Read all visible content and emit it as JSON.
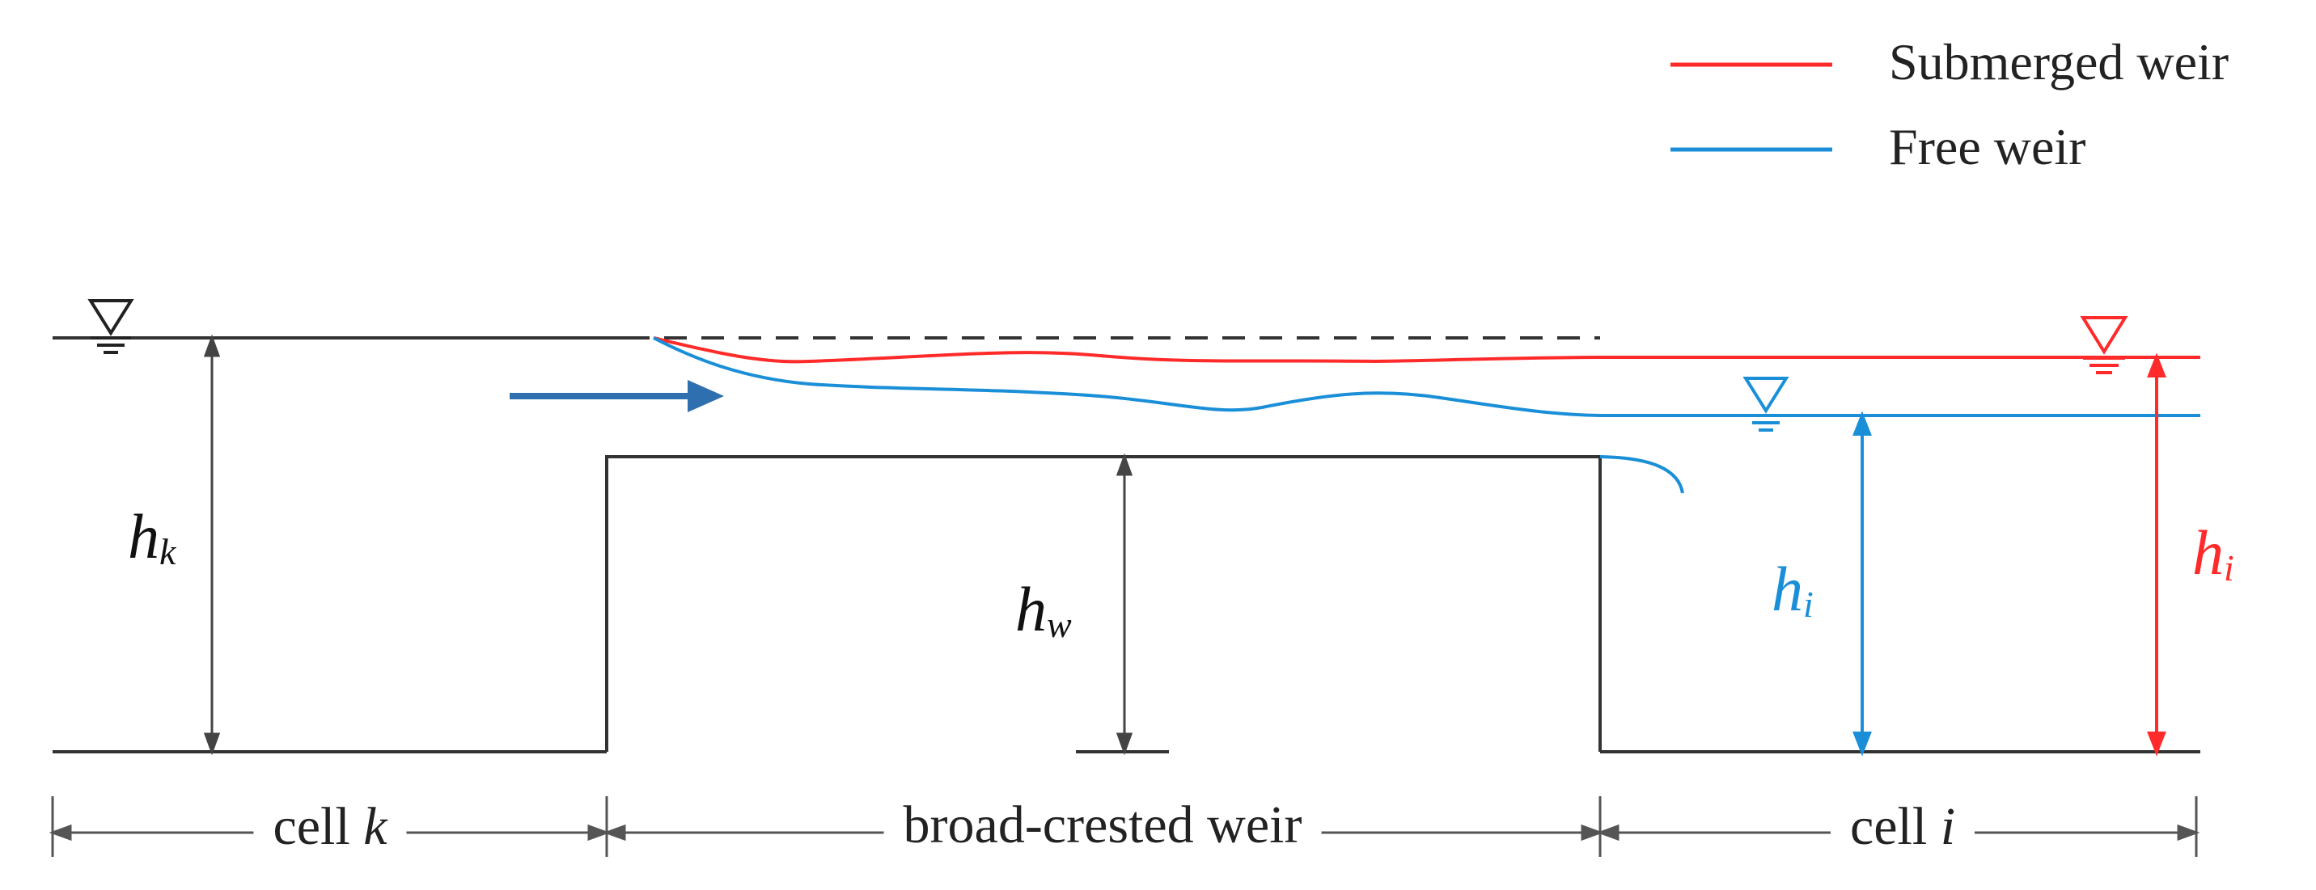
{
  "legend": {
    "submerged_label": "Submerged weir",
    "free_label": "Free weir"
  },
  "labels": {
    "hk": {
      "main": "h",
      "sub": "k"
    },
    "hw": {
      "main": "h",
      "sub": "w"
    },
    "hi_free": {
      "main": "h",
      "sub": "i"
    },
    "hi_submerged": {
      "main": "h",
      "sub": "i"
    }
  },
  "sections": {
    "cell_k": {
      "text": "cell",
      "var": "k"
    },
    "weir": {
      "text": "broad-crested weir"
    },
    "cell_i": {
      "text": "cell",
      "var": "i"
    }
  },
  "colors": {
    "submerged": "#ff2a2a",
    "free": "#1a8fd8",
    "structure": "#333333",
    "flow_arrow": "#2e6fb0"
  },
  "icons": {
    "water_level_symbol": "inverted-triangle-water-surface",
    "flow_direction": "right-arrow"
  }
}
